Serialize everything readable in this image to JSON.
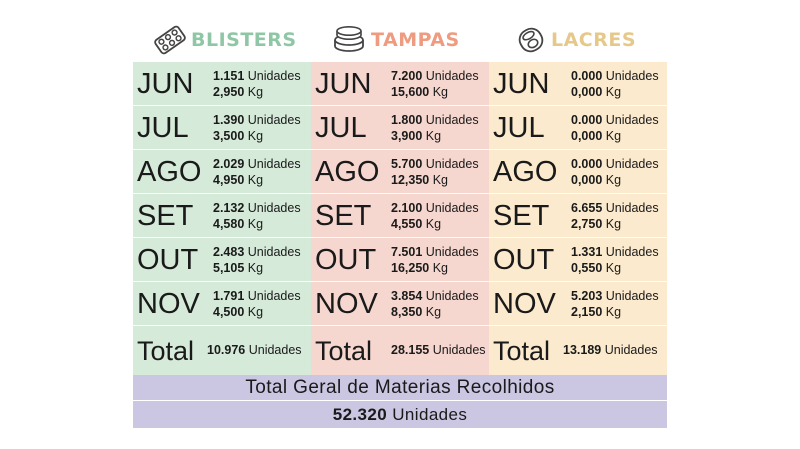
{
  "colors": {
    "blisters_bg": "#d5ead9",
    "tampas_bg": "#f6d7cf",
    "lacres_bg": "#fbeacd",
    "footer_bg": "#cbc6e1",
    "blisters_title": "#8fc7a6",
    "tampas_title": "#ef9b80",
    "lacres_title": "#e6c98a"
  },
  "columns": [
    {
      "title": "BLISTERS",
      "icon": "blister-pack-icon",
      "rows": [
        {
          "month": "JUN",
          "units": "1.151",
          "kg": "2,950"
        },
        {
          "month": "JUL",
          "units": "1.390",
          "kg": "3,500"
        },
        {
          "month": "AGO",
          "units": "2.029",
          "kg": "4,950"
        },
        {
          "month": "SET",
          "units": "2.132",
          "kg": "4,580"
        },
        {
          "month": "OUT",
          "units": "2.483",
          "kg": "5,105"
        },
        {
          "month": "NOV",
          "units": "1.791",
          "kg": "4,500"
        }
      ],
      "total_label": "Total",
      "total_units": "10.976"
    },
    {
      "title": "TAMPAS",
      "icon": "bottle-caps-icon",
      "rows": [
        {
          "month": "JUN",
          "units": "7.200",
          "kg": "15,600"
        },
        {
          "month": "JUL",
          "units": "1.800",
          "kg": "3,900"
        },
        {
          "month": "AGO",
          "units": "5.700",
          "kg": "12,350"
        },
        {
          "month": "SET",
          "units": "2.100",
          "kg": "4,550"
        },
        {
          "month": "OUT",
          "units": "7.501",
          "kg": "16,250"
        },
        {
          "month": "NOV",
          "units": "3.854",
          "kg": "8,350"
        }
      ],
      "total_label": "Total",
      "total_units": "28.155"
    },
    {
      "title": "LACRES",
      "icon": "can-tab-icon",
      "rows": [
        {
          "month": "JUN",
          "units": "0.000",
          "kg": "0,000"
        },
        {
          "month": "JUL",
          "units": "0.000",
          "kg": "0,000"
        },
        {
          "month": "AGO",
          "units": "0.000",
          "kg": "0,000"
        },
        {
          "month": "SET",
          "units": "6.655",
          "kg": "2,750"
        },
        {
          "month": "OUT",
          "units": "1.331",
          "kg": "0,550"
        },
        {
          "month": "NOV",
          "units": "5.203",
          "kg": "2,150"
        }
      ],
      "total_label": "Total",
      "total_units": "13.189"
    }
  ],
  "units_word": "Unidades",
  "kg_word": "Kg",
  "footer": {
    "title": "Total Geral de Materias Recolhidos",
    "total_value": "52.320",
    "total_units_word": "Unidades"
  }
}
